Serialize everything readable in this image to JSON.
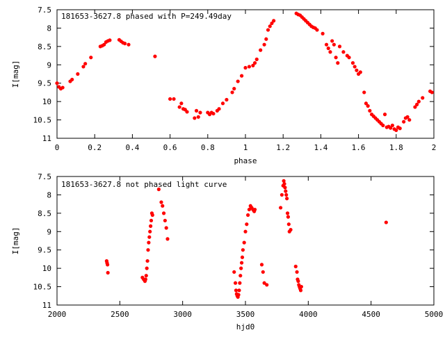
{
  "chart_data": [
    {
      "type": "scatter",
      "title": "181653-3627.8 phased with P=249.49day",
      "xlabel": "phase",
      "ylabel": "I[mag]",
      "xlim": [
        0,
        2
      ],
      "ylim": [
        7.5,
        11
      ],
      "y_inverted": true,
      "xticks": [
        "0",
        "0.2",
        "0.4",
        "0.6",
        "0.8",
        "1",
        "1.2",
        "1.4",
        "1.6",
        "1.8",
        "2"
      ],
      "yticks": [
        "7.5",
        "8",
        "8.5",
        "9",
        "9.5",
        "10",
        "10.5",
        "11"
      ],
      "grid": false,
      "marker_color": "#ff0000",
      "series": [
        {
          "x": [
            0.0,
            0.01,
            0.02,
            0.03,
            0.07,
            0.08,
            0.11,
            0.14,
            0.15,
            0.18,
            0.23,
            0.24,
            0.25,
            0.26,
            0.27,
            0.28,
            0.33,
            0.34,
            0.35,
            0.36,
            0.38,
            0.52,
            0.6,
            0.62,
            0.65,
            0.66,
            0.67,
            0.68,
            0.69,
            0.73,
            0.74,
            0.75,
            0.76,
            0.8,
            0.81,
            0.82,
            0.83,
            0.85,
            0.86,
            0.88,
            0.9,
            0.93,
            0.94,
            0.96,
            0.98,
            1.0,
            1.02,
            1.04,
            1.05,
            1.06,
            1.08,
            1.1,
            1.11,
            1.12,
            1.13,
            1.14,
            1.15,
            1.27,
            1.28,
            1.29,
            1.3,
            1.31,
            1.32,
            1.33,
            1.34,
            1.35,
            1.36,
            1.37,
            1.38,
            1.41,
            1.43,
            1.44,
            1.45,
            1.46,
            1.47,
            1.48,
            1.49,
            1.5,
            1.52,
            1.54,
            1.55,
            1.57,
            1.58,
            1.59,
            1.6,
            1.61,
            1.63,
            1.64,
            1.65,
            1.66,
            1.67,
            1.68,
            1.69,
            1.7,
            1.71,
            1.72,
            1.73,
            1.74,
            1.75,
            1.76,
            1.77,
            1.78,
            1.79,
            1.8,
            1.81,
            1.82,
            1.84,
            1.85,
            1.86,
            1.87,
            1.9,
            1.91,
            1.92,
            1.94,
            1.98,
            1.99
          ],
          "y": [
            9.5,
            9.6,
            9.65,
            9.62,
            9.45,
            9.4,
            9.25,
            9.05,
            8.97,
            8.8,
            8.5,
            8.48,
            8.45,
            8.38,
            8.35,
            8.33,
            8.32,
            8.36,
            8.4,
            8.42,
            8.45,
            8.77,
            9.93,
            9.93,
            10.15,
            10.05,
            10.2,
            10.22,
            10.28,
            10.45,
            10.25,
            10.42,
            10.3,
            10.3,
            10.35,
            10.3,
            10.33,
            10.25,
            10.2,
            10.05,
            9.95,
            9.75,
            9.65,
            9.45,
            9.3,
            9.08,
            9.05,
            9.02,
            8.95,
            8.85,
            8.6,
            8.45,
            8.3,
            8.05,
            7.95,
            7.87,
            7.8,
            7.6,
            7.63,
            7.65,
            7.7,
            7.75,
            7.8,
            7.85,
            7.9,
            7.95,
            7.98,
            8.0,
            8.05,
            8.15,
            8.45,
            8.55,
            8.65,
            8.35,
            8.45,
            8.8,
            8.95,
            8.5,
            8.65,
            8.75,
            8.8,
            8.95,
            9.05,
            9.15,
            9.25,
            9.2,
            9.75,
            10.05,
            10.12,
            10.25,
            10.35,
            10.4,
            10.45,
            10.5,
            10.55,
            10.6,
            10.65,
            10.35,
            10.7,
            10.68,
            10.72,
            10.65,
            10.75,
            10.78,
            10.7,
            10.73,
            10.55,
            10.45,
            10.42,
            10.5,
            10.15,
            10.08,
            10.0,
            9.9,
            9.72,
            9.75
          ]
        }
      ]
    },
    {
      "type": "scatter",
      "title": "181653-3627.8 not phased light curve",
      "xlabel": "hjd0",
      "ylabel": "I[mag]",
      "xlim": [
        2000,
        5000
      ],
      "ylim": [
        7.5,
        11
      ],
      "y_inverted": true,
      "xticks": [
        "2000",
        "2500",
        "3000",
        "3500",
        "4000",
        "4500",
        "5000"
      ],
      "yticks": [
        "7.5",
        "8",
        "8.5",
        "9",
        "9.5",
        "10",
        "10.5",
        "11"
      ],
      "grid": false,
      "marker_color": "#ff0000",
      "series": [
        {
          "x": [
            2395,
            2398,
            2402,
            2405,
            2680,
            2690,
            2700,
            2705,
            2710,
            2715,
            2720,
            2725,
            2730,
            2735,
            2740,
            2745,
            2750,
            2755,
            2760,
            2810,
            2830,
            2840,
            2850,
            2860,
            2870,
            2880,
            3410,
            3420,
            3425,
            3430,
            3435,
            3440,
            3445,
            3450,
            3455,
            3460,
            3465,
            3470,
            3475,
            3480,
            3490,
            3500,
            3510,
            3520,
            3530,
            3540,
            3545,
            3550,
            3560,
            3565,
            3570,
            3575,
            3630,
            3640,
            3650,
            3670,
            3780,
            3790,
            3800,
            3805,
            3810,
            3815,
            3820,
            3825,
            3830,
            3835,
            3840,
            3845,
            3850,
            3860,
            3900,
            3910,
            3915,
            3920,
            3925,
            3930,
            3935,
            3940,
            3945,
            4620
          ],
          "y": [
            9.8,
            9.85,
            9.9,
            10.12,
            10.25,
            10.3,
            10.35,
            10.3,
            10.2,
            10.0,
            9.8,
            9.5,
            9.3,
            9.15,
            9.0,
            8.85,
            8.7,
            8.5,
            8.55,
            7.85,
            8.2,
            8.3,
            8.5,
            8.7,
            8.9,
            9.2,
            10.1,
            10.4,
            10.6,
            10.7,
            10.75,
            10.78,
            10.72,
            10.6,
            10.4,
            10.2,
            10.0,
            9.85,
            9.7,
            9.5,
            9.3,
            9.0,
            8.8,
            8.55,
            8.4,
            8.3,
            8.35,
            8.35,
            8.4,
            8.42,
            8.45,
            8.4,
            9.9,
            10.1,
            10.4,
            10.45,
            8.35,
            8.0,
            7.75,
            7.62,
            7.7,
            7.8,
            7.9,
            8.0,
            8.1,
            8.5,
            8.6,
            8.8,
            9.0,
            8.95,
            9.95,
            10.1,
            10.3,
            10.35,
            10.45,
            10.5,
            10.55,
            10.6,
            10.5,
            8.75
          ]
        }
      ]
    }
  ]
}
